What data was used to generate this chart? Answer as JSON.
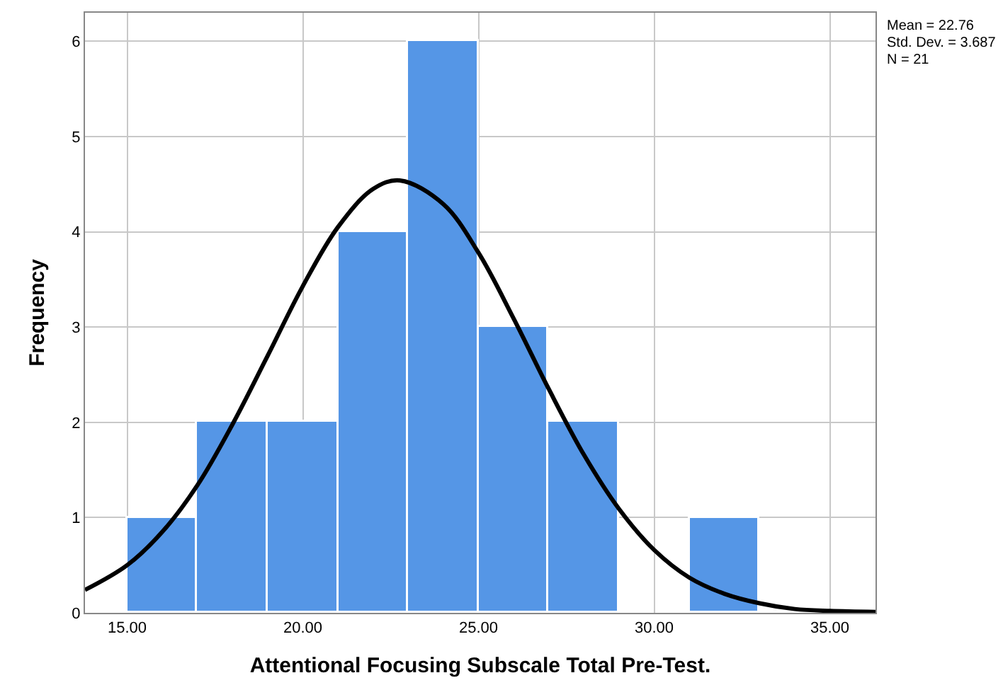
{
  "chart_data": {
    "type": "histogram",
    "xlabel": "Attentional Focusing Subscale Total Pre-Test.",
    "ylabel": "Frequency",
    "bins": [
      15,
      17,
      19,
      21,
      23,
      25,
      27,
      29,
      31,
      33
    ],
    "values": [
      1,
      2,
      2,
      4,
      6,
      3,
      2,
      0,
      1
    ],
    "color": "#5596e6",
    "series": [
      {
        "type": "line",
        "color": "#000000",
        "x": [
          13.8,
          15,
          16,
          17,
          18,
          19,
          20,
          21,
          22,
          22.76,
          24,
          25,
          26,
          27,
          28,
          29,
          30,
          31,
          32,
          33,
          34,
          35,
          36.3
        ],
        "values": [
          0.24,
          0.5,
          0.85,
          1.34,
          1.98,
          2.7,
          3.43,
          4.05,
          4.45,
          4.54,
          4.29,
          3.78,
          3.09,
          2.35,
          1.66,
          1.09,
          0.66,
          0.37,
          0.2,
          0.1,
          0.04,
          0.02,
          0.01
        ]
      }
    ],
    "xlim": [
      13.8,
      36.3
    ],
    "xticks": [
      {
        "value": 15,
        "label": "15.00"
      },
      {
        "value": 20,
        "label": "20.00"
      },
      {
        "value": 25,
        "label": "25.00"
      },
      {
        "value": 30,
        "label": "30.00"
      },
      {
        "value": 35,
        "label": "35.00"
      }
    ],
    "ylim": [
      0,
      6.3
    ],
    "yticks": [
      0,
      1,
      2,
      3,
      4,
      5,
      6
    ],
    "grid": true,
    "annotations": [
      "Mean = 22.76",
      "Std. Dev. = 3.687",
      "N = 21"
    ]
  }
}
